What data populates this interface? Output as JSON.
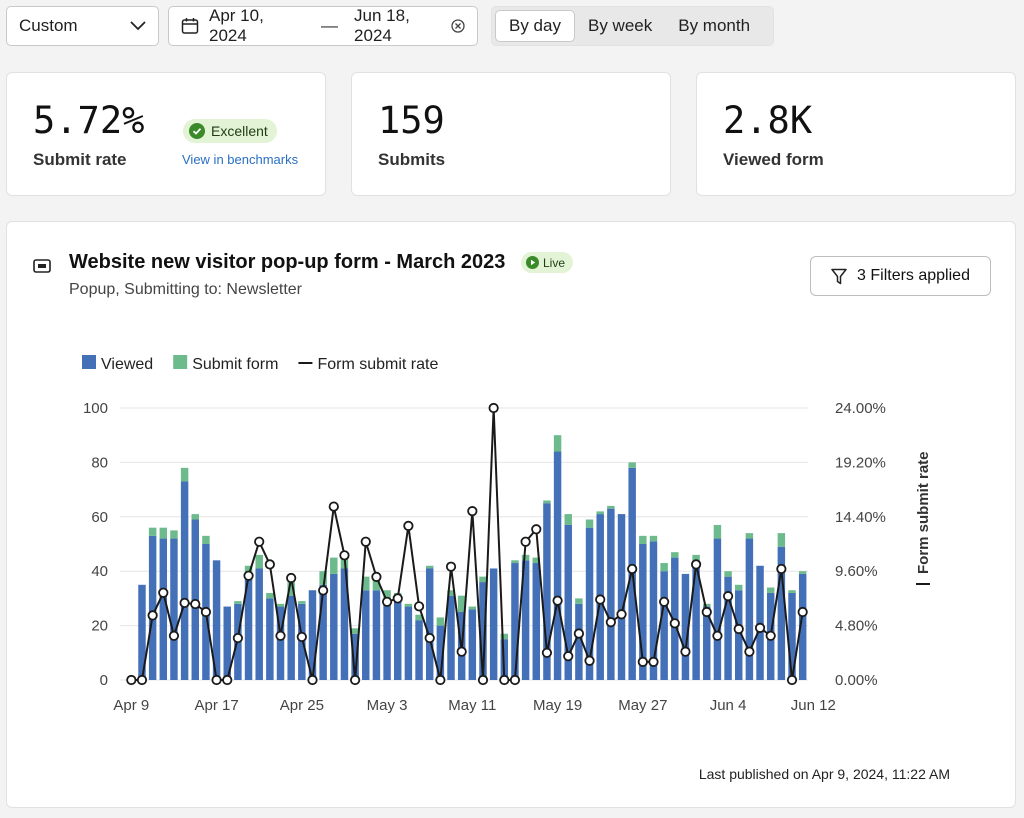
{
  "toolbar": {
    "range_select": "Custom",
    "date_from": "Apr 10, 2024",
    "date_to": "Jun 18, 2024",
    "granularity": [
      "By day",
      "By week",
      "By month"
    ],
    "granularity_active": "By day"
  },
  "metrics": [
    {
      "value": "5.72%",
      "label": "Submit rate",
      "badge": "Excellent",
      "link": "View in benchmarks"
    },
    {
      "value": "159",
      "label": "Submits"
    },
    {
      "value": "2.8K",
      "label": "Viewed form"
    }
  ],
  "panel": {
    "title": "Website new visitor pop-up form - March 2023",
    "status": "Live",
    "subtitle": "Popup, Submitting to: Newsletter",
    "filters_button": "3 Filters applied",
    "published": "Last published on Apr 9, 2024, 11:22 AM"
  },
  "colors": {
    "viewed": "#4470b8",
    "submit": "#6dbb8d",
    "line": "#1a1a1a",
    "badge_bg": "#e2f3d6",
    "badge_icon": "#3a8a2a",
    "link": "#2a6fc4"
  },
  "chart_data": {
    "type": "bar",
    "legend": [
      "Viewed",
      "Submit form",
      "Form submit rate"
    ],
    "legend_position": "top-left",
    "x_ticks": [
      "Apr 9",
      "Apr 17",
      "Apr 25",
      "May 3",
      "May 11",
      "May 19",
      "May 27",
      "Jun 4",
      "Jun 12"
    ],
    "y_left": {
      "ticks": [
        0,
        20,
        40,
        60,
        80,
        100
      ],
      "range": [
        0,
        100
      ]
    },
    "y_right": {
      "label": "Form submit rate",
      "ticks": [
        "0.00%",
        "4.80%",
        "9.60%",
        "14.40%",
        "19.20%",
        "24.00%"
      ],
      "range": [
        0,
        24
      ]
    },
    "grid": true,
    "series": [
      {
        "name": "Viewed",
        "values": [
          0,
          35,
          53,
          52,
          52,
          73,
          59,
          50,
          44,
          27,
          28,
          38,
          41,
          30,
          27,
          31,
          28,
          33,
          35,
          39,
          41,
          17,
          33,
          33,
          29,
          29,
          27,
          22,
          41,
          20,
          31,
          25,
          26,
          36,
          41,
          15,
          43,
          44,
          43,
          65,
          84,
          57,
          28,
          56,
          61,
          63,
          61,
          78,
          50,
          51,
          40,
          45,
          39,
          44,
          27,
          52,
          38,
          33,
          52,
          42,
          32,
          49,
          32,
          39
        ],
        "stack_estimated_total": [
          0,
          35,
          56,
          56,
          55,
          78,
          61,
          53,
          44,
          27,
          29,
          42,
          46,
          32,
          28,
          36,
          29,
          33,
          40,
          45,
          46,
          19,
          38,
          38,
          33,
          32,
          28,
          24,
          42,
          23,
          33,
          31,
          27,
          38,
          41,
          17,
          44,
          46,
          45,
          66,
          90,
          61,
          30,
          59,
          62,
          64,
          61,
          80,
          53,
          53,
          43,
          47,
          39,
          46,
          28,
          57,
          40,
          35,
          54,
          42,
          34,
          54,
          33,
          40
        ]
      },
      {
        "name": "Submit form",
        "values": [
          0,
          0,
          3,
          4,
          3,
          5,
          2,
          3,
          0,
          0,
          1,
          4,
          5,
          2,
          1,
          5,
          1,
          0,
          5,
          6,
          5,
          2,
          5,
          5,
          4,
          3,
          1,
          2,
          1,
          3,
          2,
          6,
          1,
          2,
          0,
          2,
          1,
          2,
          2,
          1,
          6,
          4,
          2,
          3,
          1,
          1,
          0,
          2,
          3,
          2,
          3,
          2,
          0,
          2,
          1,
          5,
          2,
          2,
          2,
          0,
          2,
          5,
          1,
          1
        ]
      },
      {
        "name": "Form submit rate",
        "unit": "%",
        "values": [
          0,
          0,
          5.7,
          7.7,
          3.9,
          6.8,
          6.7,
          6,
          0,
          0,
          3.7,
          9.2,
          12.2,
          10.2,
          3.9,
          9,
          3.8,
          0,
          7.9,
          15.3,
          11,
          0,
          12.2,
          9.1,
          6.9,
          7.2,
          13.6,
          6.5,
          3.7,
          0,
          10,
          2.5,
          14.9,
          0,
          24,
          0,
          0,
          12.2,
          13.3,
          2.4,
          7,
          2.1,
          4.1,
          1.7,
          7.1,
          5.1,
          5.8,
          9.8,
          1.6,
          1.6,
          6.9,
          5,
          2.5,
          10.2,
          6,
          3.9,
          7.4,
          4.5,
          2.5,
          4.6,
          3.9,
          9.8,
          0,
          6
        ]
      }
    ]
  }
}
